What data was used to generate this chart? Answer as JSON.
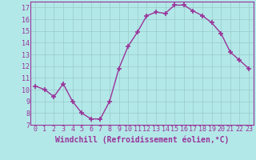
{
  "x": [
    0,
    1,
    2,
    3,
    4,
    5,
    6,
    7,
    8,
    9,
    10,
    11,
    12,
    13,
    14,
    15,
    16,
    17,
    18,
    19,
    20,
    21,
    22,
    23
  ],
  "y": [
    10.3,
    10.0,
    9.4,
    10.5,
    9.0,
    8.0,
    7.5,
    7.5,
    9.0,
    11.8,
    13.7,
    14.9,
    16.3,
    16.6,
    16.5,
    17.2,
    17.2,
    16.7,
    16.3,
    15.7,
    14.8,
    13.2,
    12.5,
    11.8
  ],
  "line_color": "#993399",
  "marker": "+",
  "marker_size": 4,
  "marker_lw": 1.2,
  "line_width": 1.0,
  "bg_color": "#b3e8e8",
  "grid_color": "#9ecece",
  "xlabel": "Windchill (Refroidissement éolien,°C)",
  "xlim": [
    -0.5,
    23.5
  ],
  "ylim": [
    7,
    17.5
  ],
  "yticks": [
    7,
    8,
    9,
    10,
    11,
    12,
    13,
    14,
    15,
    16,
    17
  ],
  "xticks": [
    0,
    1,
    2,
    3,
    4,
    5,
    6,
    7,
    8,
    9,
    10,
    11,
    12,
    13,
    14,
    15,
    16,
    17,
    18,
    19,
    20,
    21,
    22,
    23
  ],
  "tick_color": "#993399",
  "label_color": "#993399",
  "font_size": 6.0,
  "xlabel_font_size": 7.0,
  "spine_color": "#993399",
  "spine_lw": 0.8
}
